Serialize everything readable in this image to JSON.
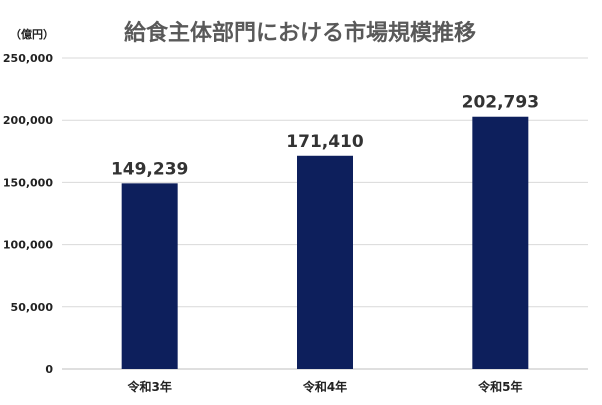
{
  "chart_data": {
    "type": "bar",
    "title": "給食主体部門における市場規模推移",
    "unit_label": "（億円）",
    "categories": [
      "令和3年",
      "令和4年",
      "令和5年"
    ],
    "values": [
      149239,
      171410,
      202793
    ],
    "data_labels": [
      "149,239",
      "171,410",
      "202,793"
    ],
    "ylim": [
      0,
      250000
    ],
    "yticks": [
      0,
      50000,
      100000,
      150000,
      200000,
      250000
    ],
    "ytick_labels": [
      "0",
      "50,000",
      "100,000",
      "150,000",
      "200,000",
      "250,000"
    ],
    "grid": true,
    "legend": "none",
    "bar_color": "#0d1f5c"
  }
}
